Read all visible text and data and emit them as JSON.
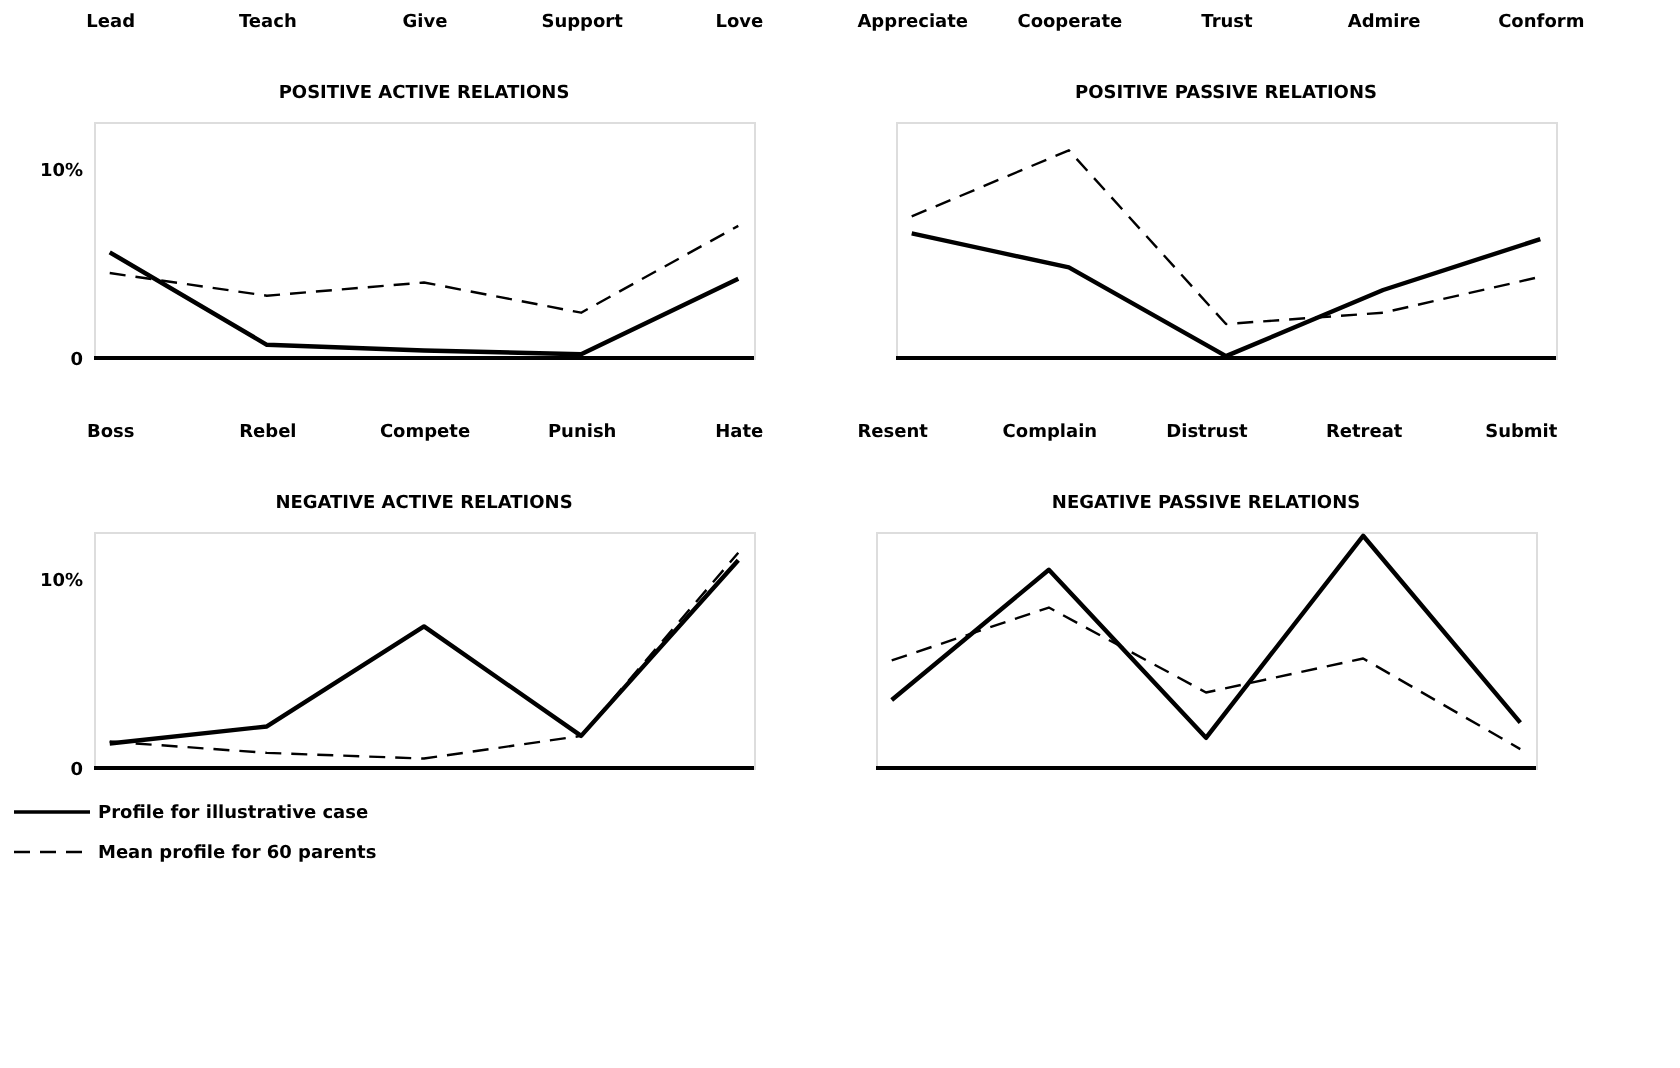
{
  "chart_data": [
    {
      "type": "line",
      "title": "POSITIVE ACTIVE RELATIONS",
      "categories": [
        "Lead",
        "Teach",
        "Give",
        "Support",
        "Love"
      ],
      "ylim": [
        0,
        12.5
      ],
      "yticks": [
        0,
        {
          "value": 10,
          "label": "10%"
        }
      ],
      "grid": false,
      "series": [
        {
          "color": "#000000",
          "line_style": "solid",
          "values": [
            5.6,
            0.7,
            0.4,
            0.2,
            4.2
          ]
        },
        {
          "color": "#000000",
          "line_style": "dashed",
          "values": [
            4.5,
            3.3,
            4.0,
            2.4,
            7.0
          ]
        }
      ]
    },
    {
      "type": "line",
      "title": "POSITIVE PASSIVE RELATIONS",
      "categories": [
        "Appreciate",
        "Cooperate",
        "Trust",
        "Admire",
        "Conform"
      ],
      "ylim": [
        0,
        12.5
      ],
      "tick_labels": "x",
      "grid": false,
      "series": [
        {
          "color": "#000000",
          "line_style": "solid",
          "values": [
            6.6,
            4.8,
            0.1,
            3.6,
            6.3
          ]
        },
        {
          "color": "#000000",
          "line_style": "dashed",
          "values": [
            7.5,
            11.0,
            1.8,
            2.4,
            4.3
          ]
        }
      ]
    },
    {
      "type": "line",
      "title": "NEGATIVE ACTIVE RELATIONS",
      "categories": [
        "Boss",
        "Rebel",
        "Compete",
        "Punish",
        "Hate"
      ],
      "ylim": [
        0,
        12.5
      ],
      "yticks": [
        0,
        {
          "value": 10,
          "label": "10%"
        }
      ],
      "grid": false,
      "legend": "bottom left",
      "series": [
        {
          "name": "Profile for illustrative case",
          "color": "#000000",
          "line_style": "solid",
          "values": [
            1.3,
            2.2,
            7.5,
            1.7,
            11.0
          ]
        },
        {
          "name": "Mean profile for 60 parents",
          "color": "#000000",
          "line_style": "dashed",
          "values": [
            1.4,
            0.8,
            0.5,
            1.7,
            11.4
          ]
        }
      ]
    },
    {
      "type": "line",
      "title": "NEGATIVE PASSIVE RELATIONS",
      "categories": [
        "Resent",
        "Complain",
        "Distrust",
        "Retreat",
        "Submit"
      ],
      "ylim": [
        0,
        12.5
      ],
      "tick_labels": "x",
      "grid": false,
      "series": [
        {
          "color": "#000000",
          "line_style": "solid",
          "values": [
            3.6,
            10.5,
            1.6,
            12.3,
            2.4
          ]
        },
        {
          "color": "#000000",
          "line_style": "dashed",
          "values": [
            5.7,
            8.5,
            4.0,
            5.8,
            1.0
          ]
        }
      ]
    }
  ]
}
